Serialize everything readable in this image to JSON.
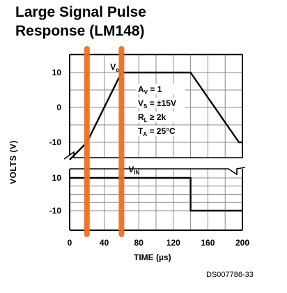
{
  "title_line1": "Large Signal Pulse",
  "title_line2": "Response (LM148)",
  "chart_data": {
    "type": "line",
    "title": "Large Signal Pulse Response (LM148)",
    "xlabel": "TIME (µs)",
    "ylabel": "VOLTS (V)",
    "xlim": [
      0,
      200
    ],
    "x_ticks": [
      "0",
      "40",
      "80",
      "120",
      "160",
      "200"
    ],
    "upper_ylim": [
      -15,
      15
    ],
    "upper_y_ticks": [
      "10",
      "0",
      "-10"
    ],
    "lower_ylim": [
      -13,
      13
    ],
    "lower_y_ticks": [
      "10",
      "-10"
    ],
    "series": [
      {
        "name": "Vo",
        "label": "V",
        "label_sub": "o",
        "x": [
          0,
          20,
          60,
          140,
          196,
          199,
          200
        ],
        "y": [
          -15,
          -10,
          10,
          10,
          -10,
          -10,
          -10
        ]
      },
      {
        "name": "VIN",
        "label": "V",
        "label_sub": "IN",
        "x": [
          0,
          140,
          140,
          200
        ],
        "y": [
          10,
          10,
          -10,
          -10
        ]
      }
    ],
    "annotations": {
      "av": {
        "sym": "A",
        "sub": "V",
        "rest": " = 1"
      },
      "vs": {
        "sym": "V",
        "sub": "S",
        "rest": " = ±15V"
      },
      "rl": {
        "sym": "R",
        "sub": "L",
        "rest": " ≥ 2k"
      },
      "ta": {
        "sym": "T",
        "sub": "A",
        "rest": " = 25°C"
      }
    },
    "markers": {
      "x": [
        20,
        60
      ],
      "color": "#f07020"
    },
    "grid": true
  },
  "doc_id": "DS007786-33"
}
